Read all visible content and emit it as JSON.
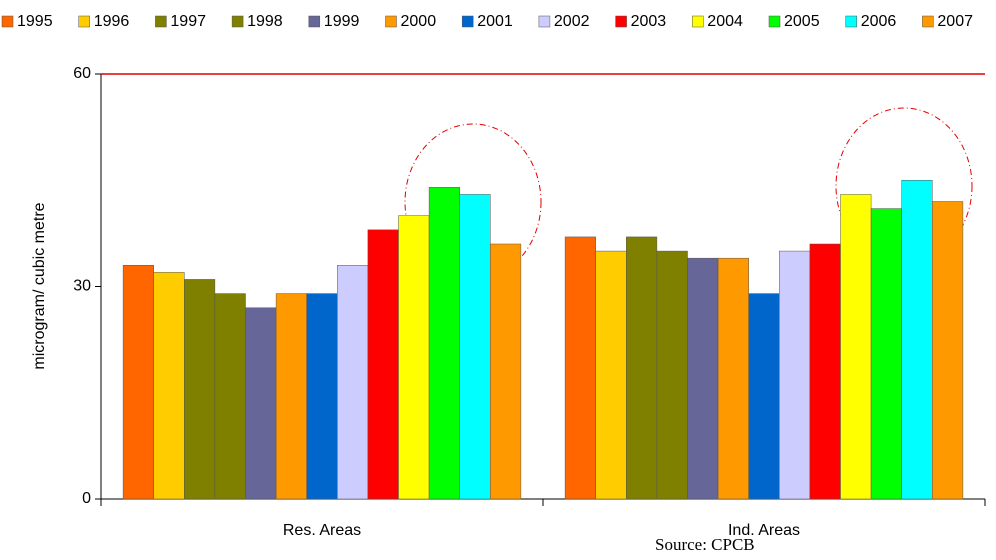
{
  "chart_data": {
    "type": "bar",
    "y_label": "microgram/ cubic metre",
    "source": "Source: CPCB",
    "categories": [
      "Res. Areas",
      "Ind. Areas"
    ],
    "series": [
      {
        "name": "1995",
        "color": "#ff6600",
        "values": [
          33,
          37
        ]
      },
      {
        "name": "1996",
        "color": "#ffcc00",
        "values": [
          32,
          35
        ]
      },
      {
        "name": "1997",
        "color": "#808000",
        "values": [
          31,
          37
        ]
      },
      {
        "name": "1998",
        "color": "#808000",
        "values": [
          29,
          35
        ]
      },
      {
        "name": "1999",
        "color": "#666699",
        "values": [
          27,
          34
        ]
      },
      {
        "name": "2000",
        "color": "#ff9900",
        "values": [
          29,
          34
        ]
      },
      {
        "name": "2001",
        "color": "#0066cc",
        "values": [
          29,
          29
        ]
      },
      {
        "name": "2002",
        "color": "#ccccff",
        "values": [
          33,
          35
        ]
      },
      {
        "name": "2003",
        "color": "#ff0000",
        "values": [
          38,
          36
        ]
      },
      {
        "name": "2004",
        "color": "#ffff00",
        "values": [
          40,
          43
        ]
      },
      {
        "name": "2005",
        "color": "#00ff00",
        "values": [
          44,
          41
        ]
      },
      {
        "name": "2006",
        "color": "#00ffff",
        "values": [
          43,
          45
        ]
      },
      {
        "name": "2007",
        "color": "#ff9900",
        "values": [
          36,
          42
        ]
      }
    ],
    "ylim": [
      0,
      60
    ],
    "yticks": [
      0,
      30,
      60
    ],
    "grid": false,
    "threshold": 60,
    "threshold_color": "#e00000",
    "legend": "top"
  }
}
